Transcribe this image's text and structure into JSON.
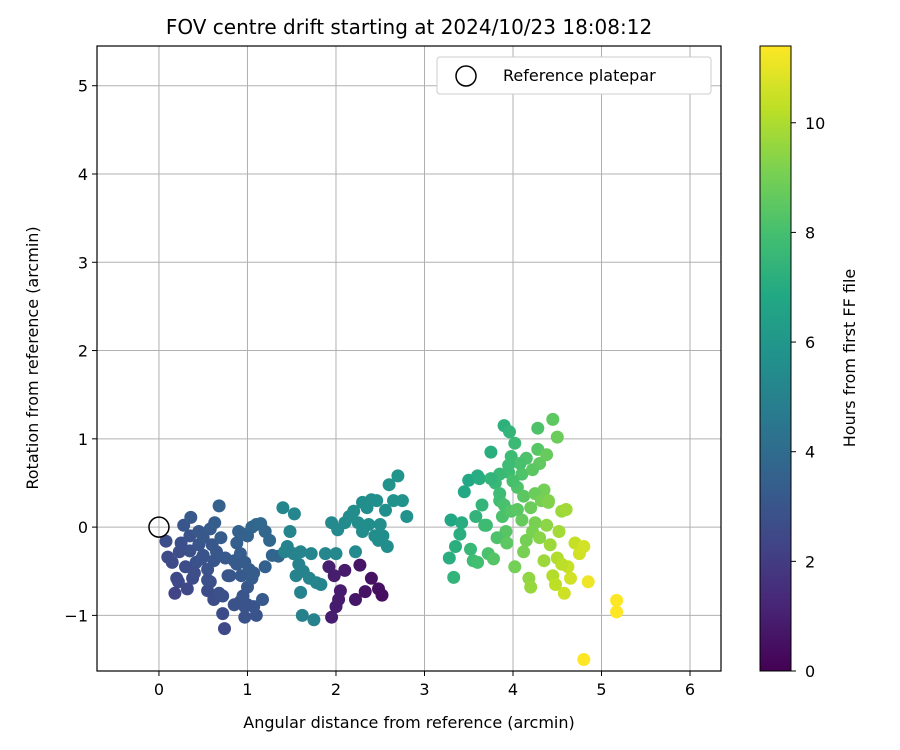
{
  "chart_data": {
    "type": "scatter",
    "title": "FOV centre drift starting at 2024/10/23 18:08:12",
    "xlabel": "Angular distance from reference (arcmin)",
    "ylabel": "Rotation from reference (arcmin)",
    "xlim": [
      -0.7,
      6.35
    ],
    "ylim": [
      -1.63,
      5.45
    ],
    "xticks": [
      "0",
      "1",
      "2",
      "3",
      "4",
      "5",
      "6"
    ],
    "yticks": [
      "−1",
      "0",
      "1",
      "2",
      "3",
      "4",
      "5"
    ],
    "grid": true,
    "legend": {
      "placement": "top-right",
      "entries": [
        "Reference platepar"
      ]
    },
    "reference_point": {
      "x": 0,
      "y": 0,
      "label": "Reference platepar"
    },
    "colorbar": {
      "label": "Hours from first FF file",
      "range": [
        0,
        11.4
      ],
      "ticks": [
        "0",
        "2",
        "4",
        "6",
        "8",
        "10"
      ],
      "colormap": "viridis"
    },
    "series": [
      {
        "points": [
          [
            2.4,
            -0.58
          ],
          [
            2.33,
            -0.73
          ],
          [
            2.48,
            -0.7
          ],
          [
            2.52,
            -0.77
          ],
          [
            2.22,
            -0.82
          ],
          [
            2.27,
            -0.43
          ],
          [
            2.1,
            -0.49
          ],
          [
            2.03,
            -0.82
          ],
          [
            2.0,
            -0.9
          ],
          [
            1.95,
            -1.02
          ],
          [
            2.05,
            -0.72
          ],
          [
            2.5,
            0.03
          ],
          [
            1.75,
            -1.05
          ],
          [
            1.62,
            -1.0
          ],
          [
            1.83,
            -0.65
          ],
          [
            1.6,
            -0.74
          ],
          [
            1.1,
            -1.0
          ],
          [
            1.07,
            -0.9
          ],
          [
            1.17,
            -0.82
          ],
          [
            0.92,
            -0.84
          ],
          [
            0.97,
            -0.9
          ],
          [
            0.8,
            -0.55
          ],
          [
            0.88,
            -0.42
          ],
          [
            0.93,
            -0.55
          ],
          [
            1.0,
            -0.68
          ],
          [
            0.68,
            0.24
          ],
          [
            0.55,
            -0.48
          ],
          [
            0.5,
            -0.32
          ],
          [
            0.62,
            -0.38
          ],
          [
            0.42,
            -0.4
          ],
          [
            0.45,
            -0.2
          ],
          [
            0.35,
            -0.27
          ],
          [
            0.48,
            -0.36
          ],
          [
            0.58,
            -0.62
          ],
          [
            0.55,
            -0.72
          ],
          [
            0.72,
            -0.78
          ],
          [
            0.97,
            -1.02
          ],
          [
            0.74,
            -1.15
          ],
          [
            1.05,
            -0.58
          ],
          [
            1.2,
            -0.45
          ],
          [
            1.28,
            -0.32
          ],
          [
            0.08,
            -0.16
          ],
          [
            0.1,
            -0.34
          ],
          [
            0.15,
            -0.4
          ],
          [
            0.23,
            -0.28
          ],
          [
            0.2,
            -0.58
          ],
          [
            0.3,
            -0.45
          ],
          [
            0.25,
            -0.18
          ],
          [
            0.35,
            -0.1
          ],
          [
            0.28,
            0.02
          ],
          [
            0.36,
            0.11
          ],
          [
            0.45,
            -0.05
          ],
          [
            0.5,
            -0.12
          ],
          [
            0.58,
            -0.02
          ],
          [
            0.6,
            -0.2
          ],
          [
            0.65,
            -0.28
          ],
          [
            0.63,
            0.05
          ],
          [
            0.7,
            -0.12
          ],
          [
            0.75,
            -0.35
          ],
          [
            0.78,
            -0.55
          ],
          [
            0.85,
            -0.38
          ],
          [
            0.9,
            -0.05
          ],
          [
            0.95,
            -0.08
          ],
          [
            1.0,
            -0.1
          ],
          [
            1.05,
            0.0
          ],
          [
            1.1,
            0.03
          ],
          [
            1.15,
            0.04
          ],
          [
            1.2,
            -0.05
          ],
          [
            1.25,
            -0.15
          ],
          [
            0.55,
            -0.6
          ],
          [
            0.62,
            -0.82
          ],
          [
            0.68,
            -0.75
          ],
          [
            0.22,
            -0.62
          ],
          [
            0.18,
            -0.75
          ],
          [
            0.38,
            -0.58
          ],
          [
            0.32,
            -0.7
          ],
          [
            0.4,
            -0.52
          ],
          [
            0.88,
            -0.18
          ],
          [
            0.92,
            -0.3
          ],
          [
            0.97,
            -0.4
          ],
          [
            1.02,
            -0.48
          ],
          [
            1.07,
            -0.52
          ],
          [
            0.95,
            -0.78
          ],
          [
            1.0,
            -0.88
          ],
          [
            0.85,
            -0.88
          ],
          [
            0.72,
            -0.98
          ],
          [
            1.4,
            0.22
          ],
          [
            1.53,
            0.15
          ],
          [
            1.48,
            -0.05
          ],
          [
            1.45,
            -0.22
          ],
          [
            1.52,
            -0.3
          ],
          [
            1.58,
            -0.42
          ],
          [
            1.63,
            -0.5
          ],
          [
            1.7,
            -0.58
          ],
          [
            1.78,
            -0.63
          ],
          [
            1.72,
            -0.3
          ],
          [
            1.88,
            -0.3
          ],
          [
            1.92,
            -0.45
          ],
          [
            1.98,
            -0.55
          ],
          [
            1.95,
            0.05
          ],
          [
            2.02,
            -0.03
          ],
          [
            2.1,
            0.05
          ],
          [
            2.15,
            0.12
          ],
          [
            2.2,
            0.18
          ],
          [
            2.25,
            0.05
          ],
          [
            2.3,
            0.28
          ],
          [
            2.35,
            0.22
          ],
          [
            2.4,
            0.31
          ],
          [
            2.46,
            0.3
          ],
          [
            2.56,
            0.19
          ],
          [
            2.6,
            0.48
          ],
          [
            2.65,
            0.3
          ],
          [
            2.7,
            0.58
          ],
          [
            2.75,
            0.3
          ],
          [
            2.8,
            0.12
          ],
          [
            2.53,
            -0.1
          ],
          [
            2.44,
            -0.1
          ],
          [
            2.37,
            0.03
          ],
          [
            2.3,
            -0.05
          ],
          [
            2.0,
            -0.3
          ],
          [
            1.35,
            -0.33
          ],
          [
            1.42,
            -0.28
          ],
          [
            1.6,
            -0.28
          ],
          [
            1.55,
            -0.55
          ],
          [
            2.22,
            -0.28
          ],
          [
            2.58,
            -0.22
          ],
          [
            2.48,
            -0.15
          ],
          [
            3.3,
            0.08
          ],
          [
            3.28,
            -0.35
          ],
          [
            3.33,
            -0.57
          ],
          [
            3.35,
            -0.22
          ],
          [
            3.4,
            -0.08
          ],
          [
            3.42,
            0.05
          ],
          [
            3.45,
            0.4
          ],
          [
            3.5,
            0.53
          ],
          [
            3.52,
            -0.25
          ],
          [
            3.55,
            -0.38
          ],
          [
            3.58,
            0.12
          ],
          [
            3.62,
            0.55
          ],
          [
            3.65,
            0.25
          ],
          [
            3.68,
            0.02
          ],
          [
            3.72,
            -0.3
          ],
          [
            3.75,
            0.85
          ],
          [
            3.78,
            -0.36
          ],
          [
            3.8,
            0.5
          ],
          [
            3.85,
            0.3
          ],
          [
            3.88,
            0.12
          ],
          [
            3.92,
            -0.05
          ],
          [
            3.95,
            0.62
          ],
          [
            3.98,
            0.8
          ],
          [
            4.02,
            0.95
          ],
          [
            4.05,
            0.45
          ],
          [
            4.1,
            0.6
          ],
          [
            4.15,
            0.78
          ],
          [
            4.2,
            0.22
          ],
          [
            4.25,
            0.05
          ],
          [
            4.3,
            0.72
          ],
          [
            4.35,
            0.42
          ],
          [
            4.4,
            0.3
          ],
          [
            4.45,
            1.22
          ],
          [
            4.5,
            1.02
          ],
          [
            4.12,
            0.35
          ],
          [
            4.22,
            0.65
          ],
          [
            4.28,
            0.88
          ],
          [
            3.82,
            -0.12
          ],
          [
            3.85,
            0.38
          ],
          [
            3.9,
            1.15
          ],
          [
            3.96,
            1.08
          ],
          [
            4.0,
            0.52
          ],
          [
            4.38,
            0.82
          ],
          [
            3.6,
            -0.4
          ],
          [
            3.85,
            0.6
          ],
          [
            3.9,
            0.25
          ],
          [
            3.93,
            -0.18
          ],
          [
            3.98,
            0.18
          ],
          [
            4.02,
            -0.45
          ],
          [
            4.08,
            0.72
          ],
          [
            4.1,
            0.08
          ],
          [
            4.15,
            -0.15
          ],
          [
            4.18,
            -0.58
          ],
          [
            4.2,
            -0.68
          ],
          [
            4.22,
            -0.05
          ],
          [
            4.25,
            0.38
          ],
          [
            4.28,
            1.12
          ],
          [
            4.3,
            -0.12
          ],
          [
            4.32,
            0.3
          ],
          [
            4.35,
            -0.38
          ],
          [
            4.38,
            0.02
          ],
          [
            4.4,
            0.28
          ],
          [
            4.42,
            -0.2
          ],
          [
            4.45,
            -0.55
          ],
          [
            4.48,
            -0.65
          ],
          [
            4.5,
            -0.35
          ],
          [
            4.52,
            -0.05
          ],
          [
            4.55,
            0.18
          ],
          [
            4.58,
            -0.75
          ],
          [
            4.6,
            0.2
          ],
          [
            4.62,
            -0.45
          ],
          [
            4.65,
            -0.58
          ],
          [
            4.7,
            -0.18
          ],
          [
            4.75,
            -0.3
          ],
          [
            4.8,
            -0.22
          ],
          [
            4.85,
            -0.62
          ],
          [
            5.17,
            -0.83
          ],
          [
            5.17,
            -0.96
          ],
          [
            4.8,
            -1.5
          ],
          [
            3.7,
            0.02
          ],
          [
            3.75,
            0.55
          ],
          [
            3.6,
            0.58
          ],
          [
            4.05,
            0.2
          ],
          [
            4.12,
            -0.28
          ],
          [
            3.95,
            0.7
          ],
          [
            4.55,
            -0.42
          ]
        ]
      }
    ]
  }
}
